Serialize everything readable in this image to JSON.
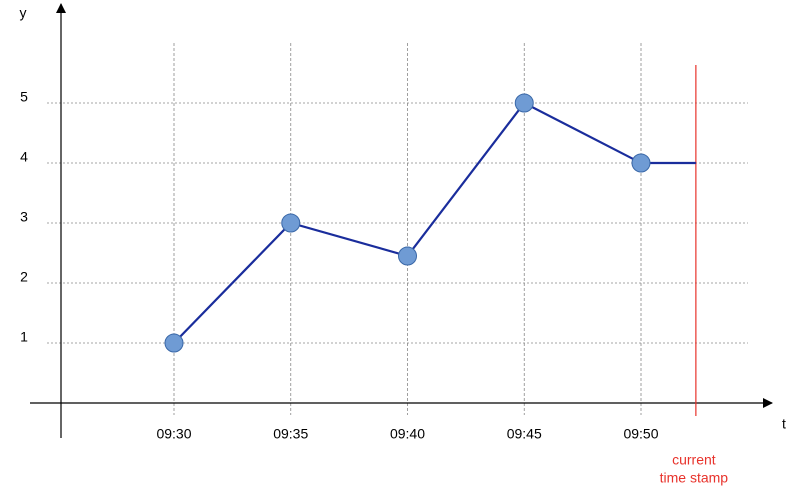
{
  "chart_data": {
    "type": "line",
    "y_label": "y",
    "x_label": "t",
    "categories": [
      "09:30",
      "09:35",
      "09:40",
      "09:45",
      "09:50"
    ],
    "values": [
      1,
      3,
      2.45,
      5,
      4
    ],
    "color": "#1a2d9c",
    "marker_color": "#6f9bd4",
    "ylim": [
      0,
      6.6
    ],
    "yticks": [
      1,
      2,
      3,
      4,
      5
    ],
    "grid": true,
    "annotation": {
      "lines": [
        "current",
        "time stamp"
      ],
      "color": "#e8322b"
    }
  }
}
